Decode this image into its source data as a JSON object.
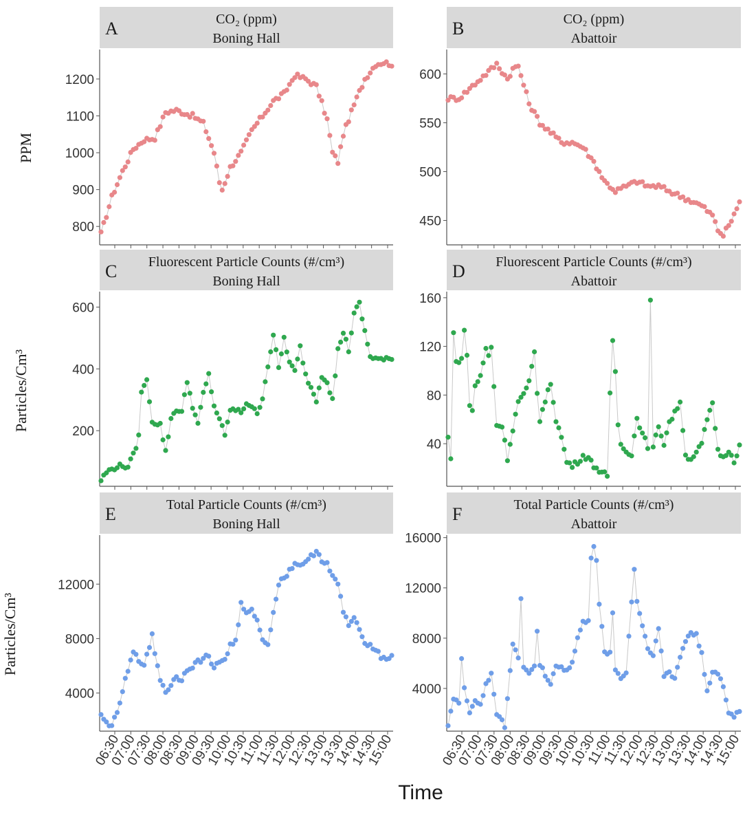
{
  "figure": {
    "x_axis_label": "Time",
    "row_labels": [
      "PPM",
      "Particles/Cm³",
      "Particles/Cm³"
    ]
  },
  "chart_data": [
    {
      "id": "A",
      "type": "line",
      "row": 0,
      "col": 0,
      "title": "CO₂ (ppm)",
      "subtitle": "Boning Hall",
      "color": "#e8878a",
      "ylim": [
        750,
        1280
      ],
      "yticks": [
        800,
        900,
        1000,
        1100,
        1200
      ],
      "xlabels": [
        "06:30",
        "07:00",
        "07:30",
        "08:00",
        "08:30",
        "09:00",
        "09:30",
        "10:00",
        "10:30",
        "11:00",
        "11:30",
        "12:00",
        "12:30",
        "13:00",
        "13:30",
        "14:00",
        "14:30",
        "15:00"
      ],
      "knots": [
        [
          0,
          780
        ],
        [
          4,
          880
        ],
        [
          8,
          950
        ],
        [
          12,
          1010
        ],
        [
          16,
          1035
        ],
        [
          20,
          1040
        ],
        [
          24,
          1110
        ],
        [
          28,
          1115
        ],
        [
          34,
          1100
        ],
        [
          38,
          1080
        ],
        [
          42,
          1000
        ],
        [
          44,
          920
        ],
        [
          45,
          900
        ],
        [
          48,
          960
        ],
        [
          52,
          1000
        ],
        [
          56,
          1060
        ],
        [
          60,
          1100
        ],
        [
          64,
          1140
        ],
        [
          68,
          1160
        ],
        [
          72,
          1210
        ],
        [
          76,
          1200
        ],
        [
          80,
          1180
        ],
        [
          84,
          1090
        ],
        [
          86,
          1000
        ],
        [
          88,
          975
        ],
        [
          90,
          1050
        ],
        [
          94,
          1130
        ],
        [
          98,
          1200
        ],
        [
          102,
          1240
        ],
        [
          105,
          1245
        ],
        [
          108,
          1240
        ]
      ]
    },
    {
      "id": "B",
      "type": "line",
      "row": 0,
      "col": 1,
      "title": "CO₂ (ppm)",
      "subtitle": "Abattoir",
      "color": "#e8878a",
      "ylim": [
        425,
        625
      ],
      "yticks": [
        450,
        500,
        550,
        600
      ],
      "xlabels": [
        "06:30",
        "07:00",
        "07:30",
        "08:00",
        "08:30",
        "09:00",
        "09:30",
        "10:00",
        "10:30",
        "11:00",
        "11:30",
        "12:00",
        "12:30",
        "13:00",
        "13:30",
        "14:00",
        "14:30",
        "15:00"
      ],
      "knots": [
        [
          0,
          575
        ],
        [
          4,
          575
        ],
        [
          8,
          585
        ],
        [
          12,
          595
        ],
        [
          16,
          605
        ],
        [
          18,
          610
        ],
        [
          22,
          595
        ],
        [
          24,
          605
        ],
        [
          26,
          608
        ],
        [
          30,
          570
        ],
        [
          34,
          550
        ],
        [
          38,
          540
        ],
        [
          42,
          530
        ],
        [
          46,
          530
        ],
        [
          50,
          525
        ],
        [
          54,
          510
        ],
        [
          58,
          490
        ],
        [
          62,
          480
        ],
        [
          66,
          485
        ],
        [
          70,
          490
        ],
        [
          74,
          485
        ],
        [
          78,
          485
        ],
        [
          82,
          480
        ],
        [
          86,
          475
        ],
        [
          90,
          470
        ],
        [
          94,
          465
        ],
        [
          98,
          455
        ],
        [
          100,
          440
        ],
        [
          102,
          435
        ],
        [
          104,
          445
        ],
        [
          106,
          455
        ],
        [
          108,
          470
        ]
      ]
    },
    {
      "id": "C",
      "type": "line",
      "row": 1,
      "col": 0,
      "title": "Fluorescent Particle Counts (#/cm³)",
      "subtitle": "Boning Hall",
      "color": "#2fa84f",
      "ylim": [
        20,
        650
      ],
      "yticks": [
        200,
        400,
        600
      ],
      "xlabels": [
        "06:30",
        "07:00",
        "07:30",
        "08:00",
        "08:30",
        "09:00",
        "09:30",
        "10:00",
        "10:30",
        "11:00",
        "11:30",
        "12:00",
        "12:30",
        "13:00",
        "13:30",
        "14:00",
        "14:30",
        "15:00"
      ],
      "knots": [
        [
          0,
          40
        ],
        [
          2,
          65
        ],
        [
          6,
          85
        ],
        [
          10,
          85
        ],
        [
          12,
          120
        ],
        [
          14,
          180
        ],
        [
          15,
          330
        ],
        [
          17,
          360
        ],
        [
          18,
          300
        ],
        [
          19,
          230
        ],
        [
          22,
          220
        ],
        [
          24,
          130
        ],
        [
          26,
          240
        ],
        [
          28,
          270
        ],
        [
          30,
          260
        ],
        [
          32,
          360
        ],
        [
          34,
          280
        ],
        [
          36,
          220
        ],
        [
          38,
          320
        ],
        [
          40,
          380
        ],
        [
          42,
          280
        ],
        [
          44,
          240
        ],
        [
          46,
          180
        ],
        [
          48,
          270
        ],
        [
          52,
          260
        ],
        [
          54,
          290
        ],
        [
          56,
          280
        ],
        [
          58,
          250
        ],
        [
          60,
          310
        ],
        [
          62,
          410
        ],
        [
          64,
          510
        ],
        [
          66,
          400
        ],
        [
          68,
          500
        ],
        [
          70,
          420
        ],
        [
          72,
          390
        ],
        [
          74,
          470
        ],
        [
          76,
          380
        ],
        [
          78,
          340
        ],
        [
          80,
          300
        ],
        [
          82,
          380
        ],
        [
          84,
          360
        ],
        [
          86,
          300
        ],
        [
          88,
          460
        ],
        [
          90,
          520
        ],
        [
          92,
          460
        ],
        [
          94,
          580
        ],
        [
          96,
          610
        ],
        [
          98,
          520
        ],
        [
          100,
          440
        ],
        [
          104,
          430
        ]
      ]
    },
    {
      "id": "D",
      "type": "line",
      "row": 1,
      "col": 1,
      "title": "Fluorescent Particle Counts (#/cm³)",
      "subtitle": "Abattoir",
      "color": "#2fa84f",
      "ylim": [
        5,
        165
      ],
      "yticks": [
        40,
        80,
        120,
        160
      ],
      "xlabels": [
        "06:30",
        "07:00",
        "07:30",
        "08:00",
        "08:30",
        "09:00",
        "09:30",
        "10:00",
        "10:30",
        "11:00",
        "11:30",
        "12:00",
        "12:30",
        "13:00",
        "13:30",
        "14:00",
        "14:30",
        "15:00"
      ],
      "knots": [
        [
          0,
          45
        ],
        [
          1,
          27
        ],
        [
          2,
          133
        ],
        [
          3,
          108
        ],
        [
          4,
          105
        ],
        [
          5,
          112
        ],
        [
          6,
          133
        ],
        [
          7,
          112
        ],
        [
          8,
          72
        ],
        [
          9,
          67
        ],
        [
          10,
          88
        ],
        [
          12,
          95
        ],
        [
          14,
          118
        ],
        [
          15,
          112
        ],
        [
          16,
          120
        ],
        [
          18,
          55
        ],
        [
          20,
          55
        ],
        [
          22,
          28
        ],
        [
          24,
          52
        ],
        [
          26,
          75
        ],
        [
          28,
          80
        ],
        [
          30,
          90
        ],
        [
          32,
          115
        ],
        [
          33,
          82
        ],
        [
          34,
          60
        ],
        [
          36,
          75
        ],
        [
          38,
          90
        ],
        [
          40,
          60
        ],
        [
          42,
          45
        ],
        [
          44,
          25
        ],
        [
          46,
          22
        ],
        [
          48,
          25
        ],
        [
          50,
          30
        ],
        [
          52,
          28
        ],
        [
          54,
          22
        ],
        [
          56,
          18
        ],
        [
          58,
          15
        ],
        [
          59,
          12
        ],
        [
          60,
          80
        ],
        [
          61,
          125
        ],
        [
          62,
          100
        ],
        [
          63,
          55
        ],
        [
          64,
          40
        ],
        [
          66,
          35
        ],
        [
          68,
          30
        ],
        [
          70,
          62
        ],
        [
          72,
          48
        ],
        [
          74,
          38
        ],
        [
          75,
          157
        ],
        [
          76,
          36
        ],
        [
          78,
          55
        ],
        [
          80,
          40
        ],
        [
          82,
          58
        ],
        [
          84,
          65
        ],
        [
          86,
          75
        ],
        [
          88,
          30
        ],
        [
          90,
          28
        ],
        [
          92,
          32
        ],
        [
          94,
          40
        ],
        [
          96,
          60
        ],
        [
          98,
          72
        ],
        [
          100,
          35
        ],
        [
          102,
          28
        ],
        [
          104,
          35
        ],
        [
          106,
          26
        ],
        [
          108,
          38
        ]
      ]
    },
    {
      "id": "E",
      "type": "line",
      "row": 2,
      "col": 0,
      "title": "Total Particle Counts (#/cm³)",
      "subtitle": "Boning Hall",
      "color": "#6f9ee8",
      "ylim": [
        1200,
        15600
      ],
      "yticks": [
        4000,
        8000,
        12000
      ],
      "xlabels": [
        "06:30",
        "07:00",
        "07:30",
        "08:00",
        "08:30",
        "09:00",
        "09:30",
        "10:00",
        "10:30",
        "11:00",
        "11:30",
        "12:00",
        "12:30",
        "13:00",
        "13:30",
        "14:00",
        "14:30",
        "15:00"
      ],
      "knots": [
        [
          0,
          2300
        ],
        [
          2,
          1800
        ],
        [
          4,
          1700
        ],
        [
          6,
          2400
        ],
        [
          8,
          4200
        ],
        [
          10,
          5600
        ],
        [
          12,
          7000
        ],
        [
          14,
          6400
        ],
        [
          16,
          6200
        ],
        [
          18,
          7200
        ],
        [
          19,
          8400
        ],
        [
          20,
          7000
        ],
        [
          22,
          5000
        ],
        [
          24,
          4100
        ],
        [
          26,
          4600
        ],
        [
          28,
          5200
        ],
        [
          30,
          5000
        ],
        [
          32,
          5800
        ],
        [
          34,
          6000
        ],
        [
          36,
          6300
        ],
        [
          38,
          6500
        ],
        [
          40,
          6800
        ],
        [
          42,
          5800
        ],
        [
          44,
          6300
        ],
        [
          46,
          6500
        ],
        [
          48,
          7500
        ],
        [
          50,
          7800
        ],
        [
          52,
          10500
        ],
        [
          54,
          9800
        ],
        [
          56,
          10000
        ],
        [
          58,
          9500
        ],
        [
          60,
          7800
        ],
        [
          62,
          7600
        ],
        [
          64,
          10000
        ],
        [
          66,
          12000
        ],
        [
          68,
          12500
        ],
        [
          70,
          13000
        ],
        [
          72,
          13500
        ],
        [
          74,
          13500
        ],
        [
          76,
          13500
        ],
        [
          78,
          14000
        ],
        [
          80,
          14500
        ],
        [
          82,
          13800
        ],
        [
          84,
          13500
        ],
        [
          86,
          12500
        ],
        [
          88,
          12000
        ],
        [
          90,
          10000
        ],
        [
          92,
          9000
        ],
        [
          94,
          9500
        ],
        [
          96,
          8500
        ],
        [
          98,
          7800
        ],
        [
          100,
          7500
        ],
        [
          102,
          7300
        ],
        [
          104,
          6600
        ]
      ]
    },
    {
      "id": "F",
      "type": "line",
      "row": 2,
      "col": 1,
      "title": "Total Particle Counts (#/cm³)",
      "subtitle": "Abattoir",
      "color": "#6f9ee8",
      "ylim": [
        600,
        16200
      ],
      "yticks": [
        4000,
        8000,
        12000,
        16000
      ],
      "xlabels": [
        "06:30",
        "07:00",
        "07:30",
        "08:00",
        "08:30",
        "09:00",
        "09:30",
        "10:00",
        "10:30",
        "11:00",
        "11:30",
        "12:00",
        "12:30",
        "13:00",
        "13:30",
        "14:00",
        "14:30",
        "15:00"
      ],
      "knots": [
        [
          0,
          1200
        ],
        [
          2,
          3200
        ],
        [
          4,
          2800
        ],
        [
          5,
          6200
        ],
        [
          6,
          4100
        ],
        [
          8,
          2200
        ],
        [
          10,
          3000
        ],
        [
          12,
          2800
        ],
        [
          14,
          4200
        ],
        [
          16,
          5100
        ],
        [
          18,
          2000
        ],
        [
          20,
          1600
        ],
        [
          21,
          1000
        ],
        [
          24,
          7500
        ],
        [
          26,
          6500
        ],
        [
          27,
          11000
        ],
        [
          28,
          5800
        ],
        [
          30,
          5200
        ],
        [
          32,
          5800
        ],
        [
          33,
          8400
        ],
        [
          34,
          6000
        ],
        [
          36,
          5000
        ],
        [
          38,
          4500
        ],
        [
          40,
          5800
        ],
        [
          44,
          5500
        ],
        [
          46,
          6000
        ],
        [
          48,
          8000
        ],
        [
          50,
          9200
        ],
        [
          52,
          9500
        ],
        [
          53,
          14500
        ],
        [
          54,
          15300
        ],
        [
          55,
          14000
        ],
        [
          56,
          10600
        ],
        [
          58,
          7000
        ],
        [
          60,
          6800
        ],
        [
          61,
          10000
        ],
        [
          62,
          5500
        ],
        [
          64,
          4900
        ],
        [
          66,
          5200
        ],
        [
          68,
          11000
        ],
        [
          69,
          13500
        ],
        [
          70,
          11000
        ],
        [
          72,
          9000
        ],
        [
          74,
          7200
        ],
        [
          76,
          6800
        ],
        [
          78,
          8700
        ],
        [
          80,
          5000
        ],
        [
          82,
          5300
        ],
        [
          84,
          4800
        ],
        [
          86,
          6500
        ],
        [
          88,
          7800
        ],
        [
          90,
          8500
        ],
        [
          92,
          8200
        ],
        [
          94,
          6800
        ],
        [
          96,
          3800
        ],
        [
          98,
          5400
        ],
        [
          100,
          5000
        ],
        [
          102,
          4200
        ],
        [
          104,
          2000
        ],
        [
          106,
          1800
        ],
        [
          108,
          2300
        ]
      ]
    }
  ]
}
